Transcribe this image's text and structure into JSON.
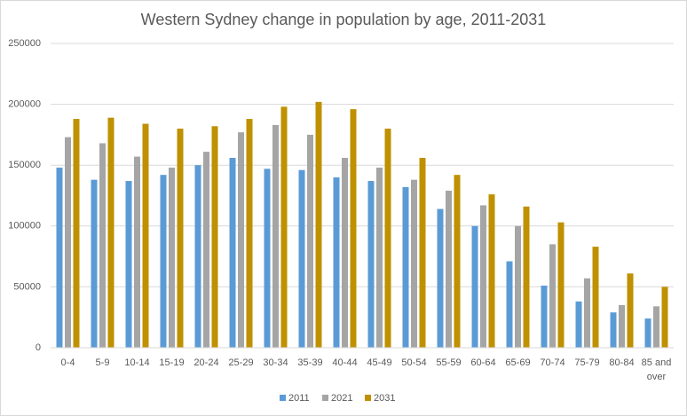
{
  "chart_data": {
    "type": "bar",
    "title": "Western Sydney change in population by age, 2011-2031",
    "categories": [
      "0-4",
      "5-9",
      "10-14",
      "15-19",
      "20-24",
      "25-29",
      "30-34",
      "35-39",
      "40-44",
      "45-49",
      "50-54",
      "55-59",
      "60-64",
      "65-69",
      "70-74",
      "75-79",
      "80-84",
      "85 and over"
    ],
    "series": [
      {
        "name": "2011",
        "color": "#5b9bd5",
        "values": [
          148000,
          138000,
          137000,
          142000,
          150000,
          156000,
          147000,
          146000,
          140000,
          137000,
          132000,
          114000,
          100000,
          71000,
          51000,
          38000,
          29000,
          24000
        ]
      },
      {
        "name": "2021",
        "color": "#a5a5a5",
        "values": [
          173000,
          168000,
          157000,
          148000,
          161000,
          177000,
          183000,
          175000,
          156000,
          148000,
          138000,
          129000,
          117000,
          100000,
          85000,
          57000,
          35000,
          34000
        ]
      },
      {
        "name": "2031",
        "color": "#bf9000",
        "values": [
          188000,
          189000,
          184000,
          180000,
          182000,
          188000,
          198000,
          202000,
          196000,
          180000,
          156000,
          142000,
          126000,
          116000,
          103000,
          83000,
          61000,
          50000
        ]
      }
    ],
    "ylim": [
      0,
      250000
    ],
    "yticks": [
      0,
      50000,
      100000,
      150000,
      200000,
      250000
    ],
    "grid": true,
    "legend": "bottom"
  }
}
